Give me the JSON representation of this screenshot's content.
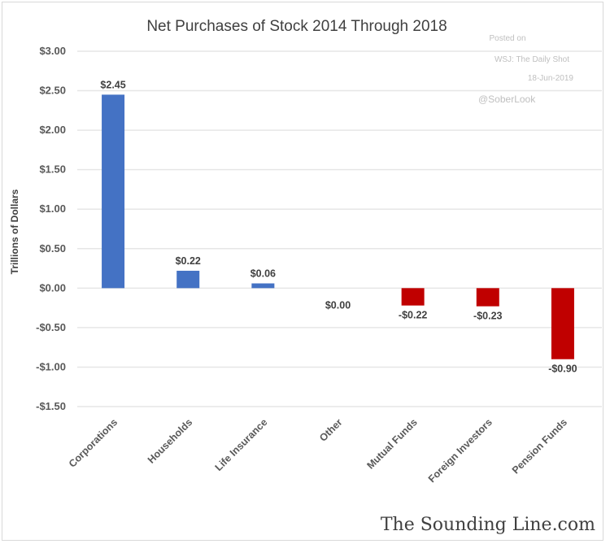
{
  "chart_data": {
    "type": "bar",
    "title": "Net Purchases of Stock 2014 Through  2018",
    "xlabel": "",
    "ylabel": "Trillions of Dollars",
    "ylim": [
      -1.5,
      3.0
    ],
    "yticks": [
      3.0,
      2.5,
      2.0,
      1.5,
      1.0,
      0.5,
      0.0,
      -0.5,
      -1.0,
      -1.5
    ],
    "ytick_labels": [
      "$3.00",
      "$2.50",
      "$2.00",
      "$1.50",
      "$1.00",
      "$0.50",
      "$0.00",
      "-$0.50",
      "-$1.00",
      "-$1.50"
    ],
    "grid": true,
    "categories": [
      "Corporations",
      "Households",
      "Life Insurance",
      "Other",
      "Mutual Funds",
      "Foreign Investors",
      "Pension Funds"
    ],
    "values": [
      2.45,
      0.22,
      0.06,
      0.0,
      -0.22,
      -0.23,
      -0.9
    ],
    "data_labels": [
      "$2.45",
      "$0.22",
      "$0.06",
      "$0.00",
      "-$0.22",
      "-$0.23",
      "-$0.90"
    ],
    "colors": {
      "positive": "#4472c4",
      "negative": "#c00000",
      "grid": "#e6e6e6"
    }
  },
  "annotations": {
    "posted_on": "Posted on",
    "source": "WSJ: The Daily Shot",
    "date": "18-Jun-2019",
    "handle": "@SoberLook"
  },
  "brand": "The Sounding Line.com"
}
